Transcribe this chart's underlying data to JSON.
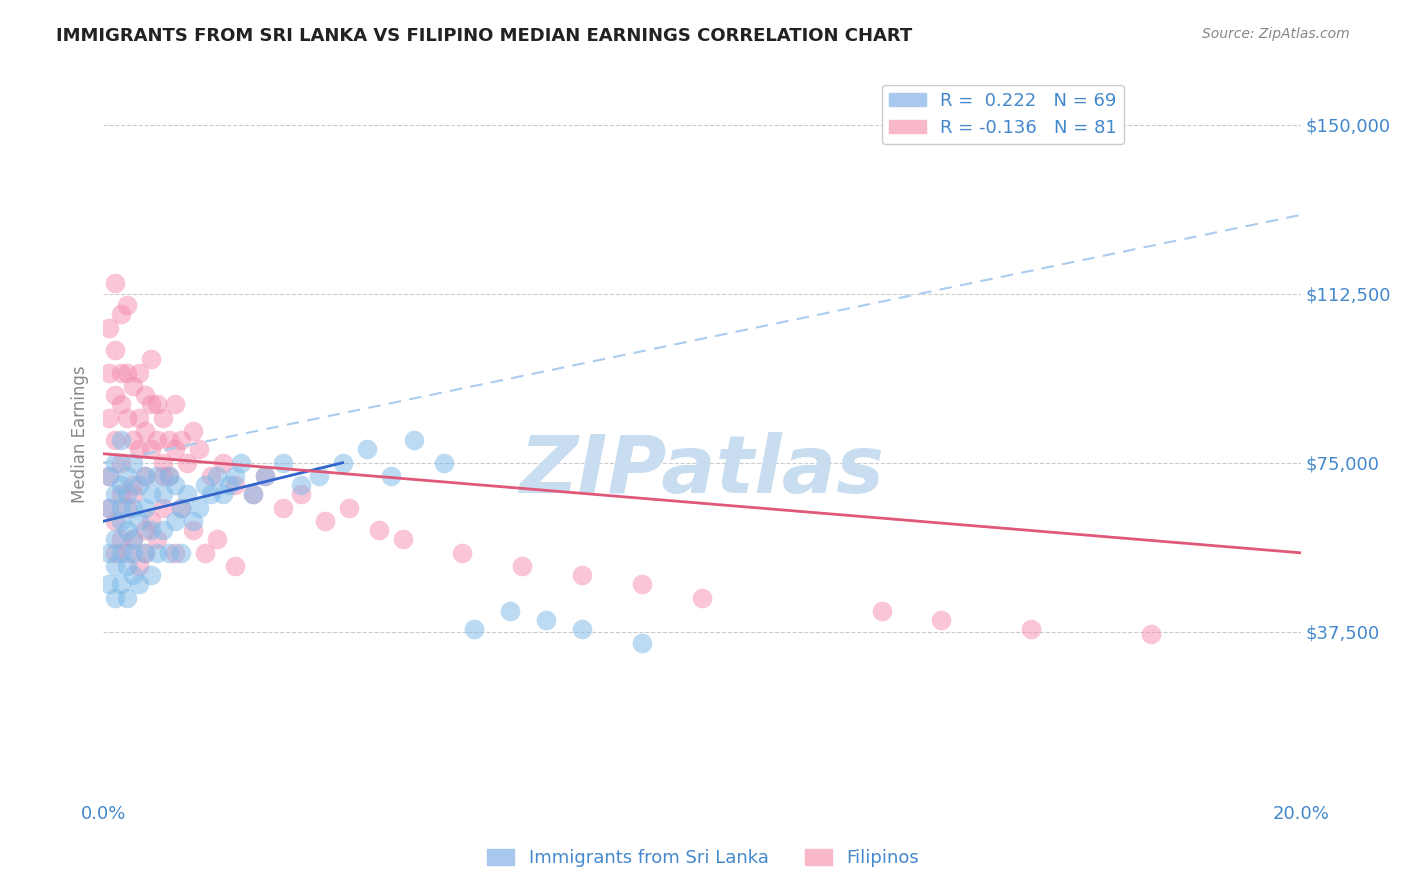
{
  "title": "IMMIGRANTS FROM SRI LANKA VS FILIPINO MEDIAN EARNINGS CORRELATION CHART",
  "source": "Source: ZipAtlas.com",
  "ylabel": "Median Earnings",
  "xlim": [
    0,
    0.2
  ],
  "ylim": [
    0,
    162500
  ],
  "yticks": [
    37500,
    75000,
    112500,
    150000
  ],
  "ytick_labels": [
    "$37,500",
    "$75,000",
    "$112,500",
    "$150,000"
  ],
  "xticks": [
    0.0,
    0.05,
    0.1,
    0.15,
    0.2
  ],
  "xtick_labels_show": [
    "0.0%",
    "",
    "",
    "",
    "20.0%"
  ],
  "series1_color": "#7ab8e8",
  "series2_color": "#f48cb0",
  "trendline1_solid_color": "#3366cc",
  "trendline1_dash_color": "#aaccee",
  "trendline2_color": "#e05878",
  "watermark": "ZIPatlas",
  "watermark_color": "#c8ddf0",
  "background_color": "#ffffff",
  "grid_color": "#cccccc",
  "axis_label_color": "#4488cc",
  "title_color": "#222222",
  "legend1_color": "#a8c8f0",
  "legend2_color": "#f8b8c8",
  "sri_lanka_x": [
    0.001,
    0.001,
    0.001,
    0.001,
    0.002,
    0.002,
    0.002,
    0.002,
    0.002,
    0.003,
    0.003,
    0.003,
    0.003,
    0.003,
    0.003,
    0.004,
    0.004,
    0.004,
    0.004,
    0.004,
    0.005,
    0.005,
    0.005,
    0.005,
    0.005,
    0.006,
    0.006,
    0.006,
    0.007,
    0.007,
    0.007,
    0.008,
    0.008,
    0.008,
    0.009,
    0.009,
    0.01,
    0.01,
    0.011,
    0.011,
    0.012,
    0.012,
    0.013,
    0.013,
    0.014,
    0.015,
    0.016,
    0.017,
    0.018,
    0.019,
    0.02,
    0.021,
    0.022,
    0.023,
    0.025,
    0.027,
    0.03,
    0.033,
    0.036,
    0.04,
    0.044,
    0.048,
    0.052,
    0.057,
    0.062,
    0.068,
    0.074,
    0.08,
    0.09
  ],
  "sri_lanka_y": [
    55000,
    65000,
    72000,
    48000,
    58000,
    68000,
    52000,
    75000,
    45000,
    62000,
    55000,
    70000,
    48000,
    80000,
    65000,
    60000,
    72000,
    52000,
    68000,
    45000,
    58000,
    65000,
    50000,
    75000,
    55000,
    62000,
    70000,
    48000,
    55000,
    65000,
    72000,
    60000,
    50000,
    68000,
    55000,
    72000,
    60000,
    68000,
    55000,
    72000,
    62000,
    70000,
    65000,
    55000,
    68000,
    62000,
    65000,
    70000,
    68000,
    72000,
    68000,
    70000,
    72000,
    75000,
    68000,
    72000,
    75000,
    70000,
    72000,
    75000,
    78000,
    72000,
    80000,
    75000,
    38000,
    42000,
    40000,
    38000,
    35000
  ],
  "filipino_x": [
    0.001,
    0.001,
    0.001,
    0.002,
    0.002,
    0.002,
    0.002,
    0.003,
    0.003,
    0.003,
    0.003,
    0.004,
    0.004,
    0.004,
    0.005,
    0.005,
    0.005,
    0.006,
    0.006,
    0.006,
    0.007,
    0.007,
    0.007,
    0.008,
    0.008,
    0.008,
    0.009,
    0.009,
    0.01,
    0.01,
    0.011,
    0.011,
    0.012,
    0.012,
    0.013,
    0.014,
    0.015,
    0.016,
    0.018,
    0.02,
    0.022,
    0.025,
    0.027,
    0.03,
    0.033,
    0.037,
    0.041,
    0.046,
    0.001,
    0.001,
    0.002,
    0.002,
    0.003,
    0.003,
    0.004,
    0.004,
    0.005,
    0.005,
    0.006,
    0.007,
    0.007,
    0.008,
    0.009,
    0.01,
    0.01,
    0.012,
    0.013,
    0.015,
    0.017,
    0.019,
    0.022,
    0.05,
    0.06,
    0.07,
    0.08,
    0.09,
    0.1,
    0.13,
    0.14,
    0.155,
    0.175
  ],
  "filipino_y": [
    85000,
    95000,
    105000,
    90000,
    100000,
    115000,
    80000,
    88000,
    95000,
    108000,
    75000,
    85000,
    95000,
    110000,
    80000,
    92000,
    70000,
    85000,
    78000,
    95000,
    82000,
    90000,
    72000,
    88000,
    78000,
    98000,
    80000,
    88000,
    75000,
    85000,
    80000,
    72000,
    78000,
    88000,
    80000,
    75000,
    82000,
    78000,
    72000,
    75000,
    70000,
    68000,
    72000,
    65000,
    68000,
    62000,
    65000,
    60000,
    65000,
    72000,
    55000,
    62000,
    58000,
    68000,
    55000,
    65000,
    58000,
    68000,
    52000,
    60000,
    55000,
    62000,
    58000,
    65000,
    72000,
    55000,
    65000,
    60000,
    55000,
    58000,
    52000,
    58000,
    55000,
    52000,
    50000,
    48000,
    45000,
    42000,
    40000,
    38000,
    37000
  ],
  "trendline1_x0": 0.0,
  "trendline1_y0": 62000,
  "trendline1_x1": 0.04,
  "trendline1_y1": 75000,
  "trendline1_dash_x0": 0.0,
  "trendline1_dash_y0": 75000,
  "trendline1_dash_x1": 0.2,
  "trendline1_dash_y1": 130000,
  "trendline2_x0": 0.0,
  "trendline2_y0": 77000,
  "trendline2_x1": 0.2,
  "trendline2_y1": 55000
}
